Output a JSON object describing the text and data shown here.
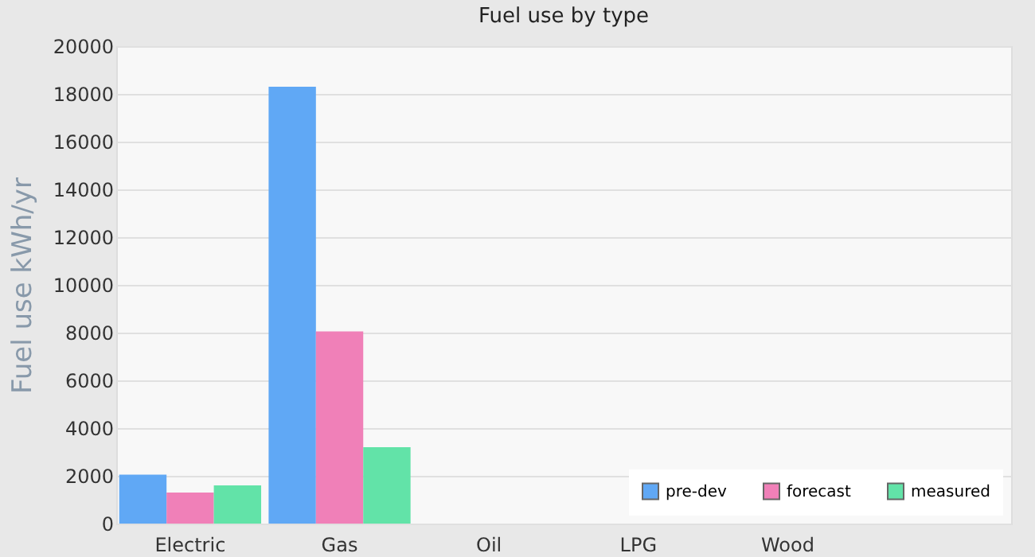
{
  "chart_data": {
    "type": "bar",
    "title": "Fuel use by type",
    "ylabel": "Fuel use  kWh/yr",
    "categories": [
      "Electric",
      "Gas",
      "Oil",
      "LPG",
      "Wood",
      null
    ],
    "series": [
      {
        "name": "pre-dev",
        "color": "#60a8f5",
        "values": [
          2050,
          18300,
          0,
          0,
          0,
          null
        ]
      },
      {
        "name": "forecast",
        "color": "#f080b8",
        "values": [
          1300,
          8050,
          0,
          0,
          0,
          null
        ]
      },
      {
        "name": "measured",
        "color": "#62e3a8",
        "values": [
          1600,
          3200,
          0,
          0,
          0,
          null
        ]
      }
    ],
    "ylim": [
      0,
      20000
    ],
    "yticks": [
      0,
      2000,
      4000,
      6000,
      8000,
      10000,
      12000,
      14000,
      16000,
      18000,
      20000
    ],
    "grid": "y",
    "legend": "bottom right"
  }
}
